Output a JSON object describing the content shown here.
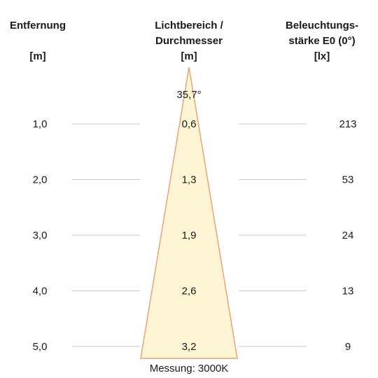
{
  "headers": {
    "distance": {
      "line1": "Entfernung",
      "unit": "[m]"
    },
    "diameter": {
      "line1": "Lichtbereich /",
      "line2": "Durchmesser",
      "unit": "[m]"
    },
    "illuminance": {
      "line1": "Beleuchtungs-",
      "line2": "stärke E0 (0°)",
      "unit": "[lx]"
    }
  },
  "beam_angle": "35,7°",
  "rows": [
    {
      "distance": "1,0",
      "diameter": "0,6",
      "illuminance": "213"
    },
    {
      "distance": "2,0",
      "diameter": "1,3",
      "illuminance": "53"
    },
    {
      "distance": "3,0",
      "diameter": "1,9",
      "illuminance": "24"
    },
    {
      "distance": "4,0",
      "diameter": "2,6",
      "illuminance": "13"
    },
    {
      "distance": "5,0",
      "diameter": "3,2",
      "illuminance": "9"
    }
  ],
  "footer": "Messung: 3000K",
  "colors": {
    "cone_fill": "#fdf5d3",
    "cone_stroke": "#e8a47a",
    "row_line": "#c8c8c8"
  }
}
